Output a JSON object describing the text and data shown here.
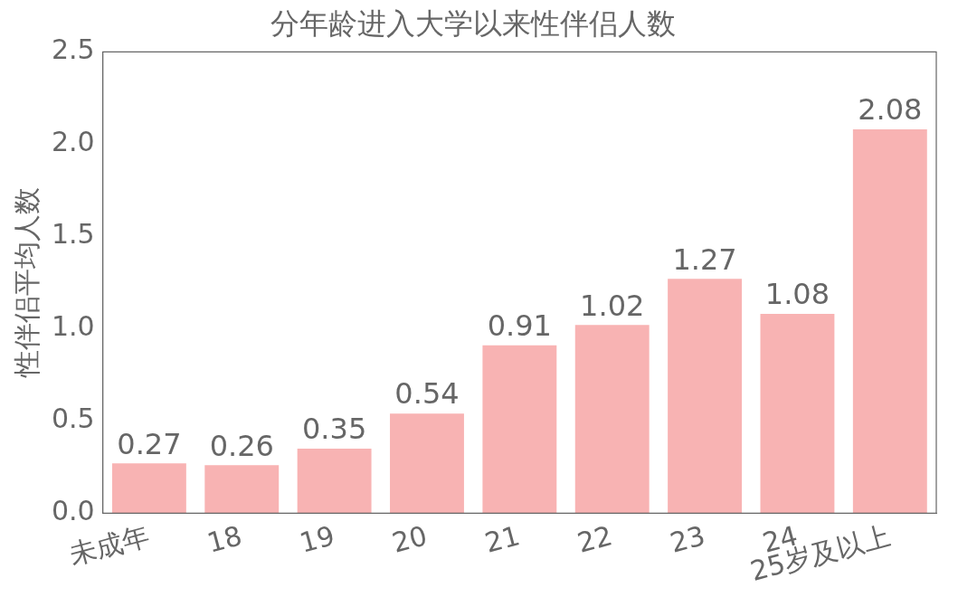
{
  "chart_data": {
    "type": "bar",
    "title": "分年龄进入大学以来性伴侣人数",
    "ylabel": "性伴侣平均人数",
    "categories": [
      "未成年",
      "18",
      "19",
      "20",
      "21",
      "22",
      "23",
      "24",
      "25岁及以上"
    ],
    "values": [
      0.27,
      0.26,
      0.35,
      0.54,
      0.91,
      1.02,
      1.27,
      1.08,
      2.08
    ],
    "color": "#f8b3b3",
    "ylim": [
      0,
      2.5
    ],
    "yticks": [
      {
        "value": 0,
        "label": "0.0"
      },
      {
        "value": 0.5,
        "label": "0.5"
      },
      {
        "value": 1,
        "label": "1.0"
      },
      {
        "value": 1.5,
        "label": "1.5"
      },
      {
        "value": 2,
        "label": "2.0"
      },
      {
        "value": 2.5,
        "label": "2.5"
      }
    ],
    "data_labels": true,
    "grid": false,
    "legend": false
  }
}
